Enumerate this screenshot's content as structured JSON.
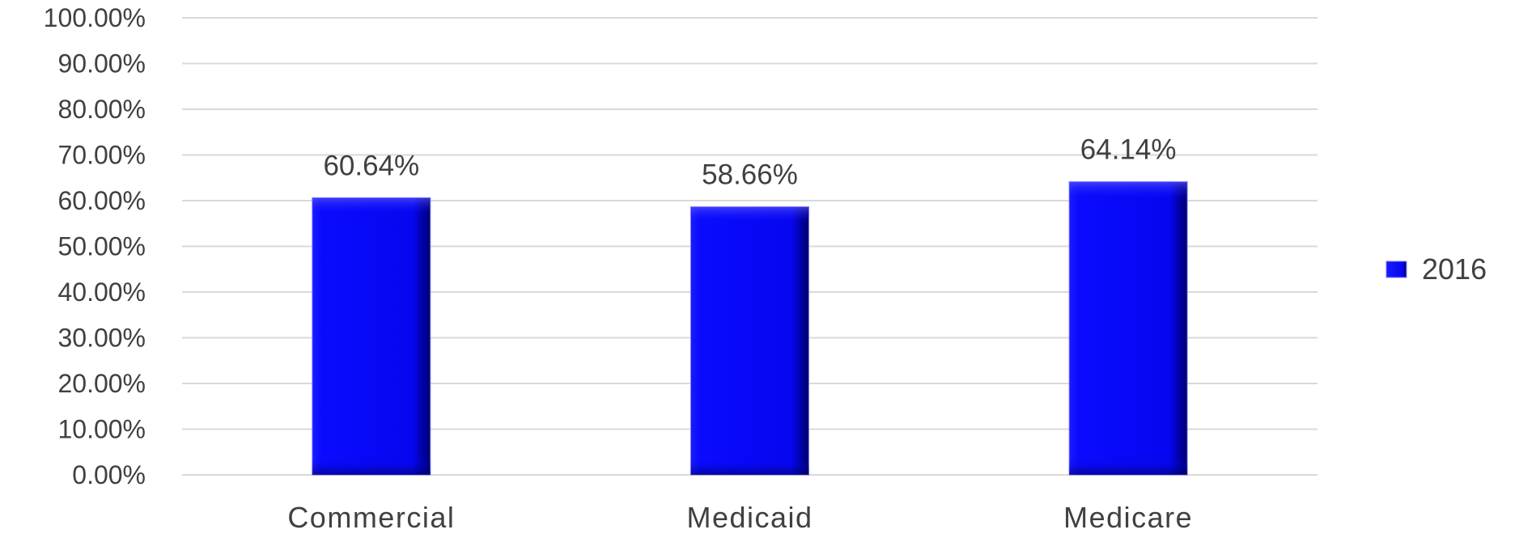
{
  "chart_data": {
    "type": "bar",
    "categories": [
      "Commercial",
      "Medicaid",
      "Medicare"
    ],
    "series": [
      {
        "name": "2016",
        "values": [
          60.64,
          58.66,
          64.14
        ],
        "value_labels": [
          "60.64%",
          "58.66%",
          "64.14%"
        ]
      }
    ],
    "y_ticks": [
      "0.00%",
      "10.00%",
      "20.00%",
      "30.00%",
      "40.00%",
      "50.00%",
      "60.00%",
      "70.00%",
      "80.00%",
      "90.00%",
      "100.00%"
    ],
    "ylim": [
      0,
      100
    ],
    "title": "",
    "xlabel": "",
    "ylabel": "",
    "grid": true,
    "legend_position": "right",
    "colors": {
      "bar": "#0a0aff",
      "bar_dark": "#00007a",
      "grid": "#d9d9d9",
      "text": "#404040"
    }
  }
}
